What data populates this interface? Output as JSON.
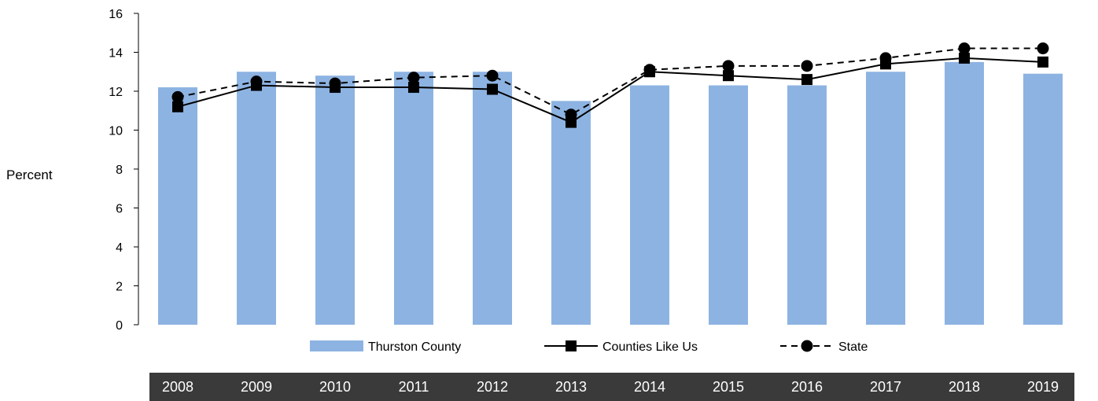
{
  "chart_data": {
    "type": "bar",
    "title": "",
    "xlabel": "",
    "ylabel": "Percent",
    "ylim": [
      0,
      16
    ],
    "yticks": [
      "0",
      "2",
      "4",
      "6",
      "8",
      "10",
      "12",
      "14",
      "16"
    ],
    "categories": [
      "2008",
      "2009",
      "2010",
      "2011",
      "2012",
      "2013",
      "2014",
      "2015",
      "2016",
      "2017",
      "2018",
      "2019"
    ],
    "legend_position": "bottom",
    "grid": false,
    "series": [
      {
        "name": "Thurston County",
        "kind": "bar",
        "color": "#8db3e2",
        "values": [
          12.2,
          13.0,
          12.8,
          13.0,
          13.0,
          11.5,
          12.3,
          12.3,
          12.3,
          13.0,
          13.5,
          12.9
        ]
      },
      {
        "name": "Counties Like Us",
        "kind": "line",
        "line_style": "solid",
        "marker": "square",
        "color": "#000000",
        "values": [
          11.2,
          12.3,
          12.2,
          12.2,
          12.1,
          10.4,
          13.0,
          12.8,
          12.6,
          13.4,
          13.7,
          13.5
        ]
      },
      {
        "name": "State",
        "kind": "line",
        "line_style": "dashed",
        "marker": "circle",
        "color": "#000000",
        "values": [
          11.7,
          12.5,
          12.4,
          12.7,
          12.8,
          10.8,
          13.1,
          13.3,
          13.3,
          13.7,
          14.2,
          14.2
        ]
      }
    ],
    "category_bar_color": "#3a3a3a"
  }
}
